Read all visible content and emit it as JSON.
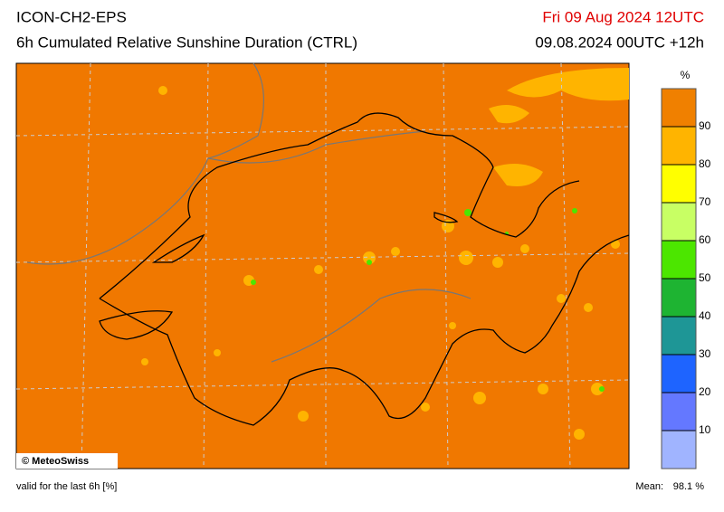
{
  "header": {
    "title": "ICON-CH2-EPS",
    "subtitle": "6h Cumulated Relative Sunshine Duration (CTRL)",
    "date": "Fri 09 Aug 2024 12UTC",
    "run": "09.08.2024 00UTC +12h"
  },
  "map": {
    "credit": "© MeteoSwiss"
  },
  "colorbar": {
    "unit": "%",
    "ticks": [
      10,
      20,
      30,
      40,
      50,
      60,
      70,
      80,
      90
    ],
    "colors": [
      "#a0b4ff",
      "#6478ff",
      "#1e64ff",
      "#1e9696",
      "#1eb432",
      "#4ce600",
      "#c8ff64",
      "#ffff00",
      "#ffb400",
      "#f08000"
    ]
  },
  "footer": {
    "validity": "valid for the last 6h [%]",
    "mean_label": "Mean:",
    "mean_value": "98.1 %"
  }
}
